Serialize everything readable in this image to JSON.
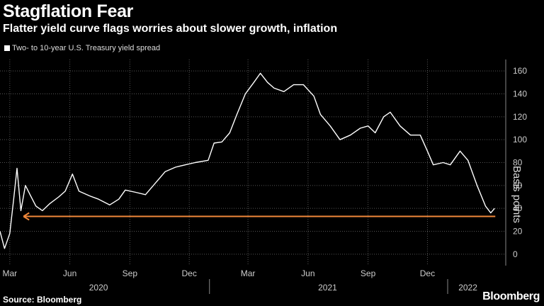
{
  "chart_data": {
    "type": "line",
    "title": "Stagflation Fear",
    "subtitle": "Flatter yield curve flags worries about slower growth, inflation",
    "legend": "Two- to 10-year U.S. Treasury yield spread",
    "ylabel": "Basis points",
    "ylim": [
      -10,
      170
    ],
    "yticks": [
      0,
      20,
      40,
      60,
      80,
      100,
      120,
      140,
      160
    ],
    "grid": true,
    "x_ticks": [
      {
        "label": "Mar",
        "date": "2020-03-01"
      },
      {
        "label": "Jun",
        "date": "2020-06-01"
      },
      {
        "label": "Sep",
        "date": "2020-09-01"
      },
      {
        "label": "Dec",
        "date": "2020-12-01"
      },
      {
        "label": "Mar",
        "date": "2021-03-01"
      },
      {
        "label": "Jun",
        "date": "2021-06-01"
      },
      {
        "label": "Sep",
        "date": "2021-09-01"
      },
      {
        "label": "Dec",
        "date": "2021-12-01"
      }
    ],
    "years": [
      {
        "label": "2020",
        "date": "2020-07-15"
      },
      {
        "label": "2021",
        "date": "2021-07-01"
      },
      {
        "label": "2022",
        "date": "2022-02-01"
      }
    ],
    "year_dividers": [
      "2021-01-01",
      "2022-01-01"
    ],
    "x_start": "2020-02-15",
    "x_end": "2022-03-31",
    "series": [
      {
        "name": "Two- to 10-year U.S. Treasury yield spread",
        "color": "#ffffff",
        "points": [
          [
            "2020-02-15",
            20
          ],
          [
            "2020-02-22",
            5
          ],
          [
            "2020-03-01",
            18
          ],
          [
            "2020-03-07",
            48
          ],
          [
            "2020-03-12",
            75
          ],
          [
            "2020-03-18",
            38
          ],
          [
            "2020-03-25",
            60
          ],
          [
            "2020-04-01",
            52
          ],
          [
            "2020-04-10",
            42
          ],
          [
            "2020-04-20",
            38
          ],
          [
            "2020-05-01",
            44
          ],
          [
            "2020-05-15",
            50
          ],
          [
            "2020-05-25",
            55
          ],
          [
            "2020-06-05",
            70
          ],
          [
            "2020-06-15",
            55
          ],
          [
            "2020-07-01",
            51
          ],
          [
            "2020-07-15",
            48
          ],
          [
            "2020-08-01",
            43
          ],
          [
            "2020-08-15",
            48
          ],
          [
            "2020-08-25",
            56
          ],
          [
            "2020-09-10",
            54
          ],
          [
            "2020-09-25",
            52
          ],
          [
            "2020-10-10",
            62
          ],
          [
            "2020-10-25",
            72
          ],
          [
            "2020-11-10",
            76
          ],
          [
            "2020-11-25",
            78
          ],
          [
            "2020-12-10",
            80
          ],
          [
            "2020-12-30",
            82
          ],
          [
            "2021-01-08",
            97
          ],
          [
            "2021-01-20",
            98
          ],
          [
            "2021-02-01",
            106
          ],
          [
            "2021-02-12",
            122
          ],
          [
            "2021-02-25",
            140
          ],
          [
            "2021-03-10",
            150
          ],
          [
            "2021-03-20",
            158
          ],
          [
            "2021-03-31",
            150
          ],
          [
            "2021-04-10",
            145
          ],
          [
            "2021-04-25",
            142
          ],
          [
            "2021-05-10",
            148
          ],
          [
            "2021-05-25",
            148
          ],
          [
            "2021-06-10",
            138
          ],
          [
            "2021-06-20",
            122
          ],
          [
            "2021-07-05",
            112
          ],
          [
            "2021-07-20",
            100
          ],
          [
            "2021-08-05",
            104
          ],
          [
            "2021-08-20",
            110
          ],
          [
            "2021-09-01",
            112
          ],
          [
            "2021-09-12",
            106
          ],
          [
            "2021-09-25",
            120
          ],
          [
            "2021-10-05",
            124
          ],
          [
            "2021-10-20",
            112
          ],
          [
            "2021-11-05",
            104
          ],
          [
            "2021-11-20",
            104
          ],
          [
            "2021-12-01",
            90
          ],
          [
            "2021-12-10",
            78
          ],
          [
            "2021-12-25",
            80
          ],
          [
            "2022-01-05",
            78
          ],
          [
            "2022-01-20",
            90
          ],
          [
            "2022-02-01",
            82
          ],
          [
            "2022-02-15",
            60
          ],
          [
            "2022-02-28",
            42
          ],
          [
            "2022-03-08",
            36
          ],
          [
            "2022-03-14",
            40
          ]
        ]
      }
    ],
    "annotation": {
      "type": "arrow",
      "color": "#f0873a",
      "y": 33,
      "from_date": "2022-03-15",
      "to_date": "2020-03-22"
    }
  },
  "footer": {
    "source": "Source: Bloomberg",
    "brand": "Bloomberg"
  }
}
